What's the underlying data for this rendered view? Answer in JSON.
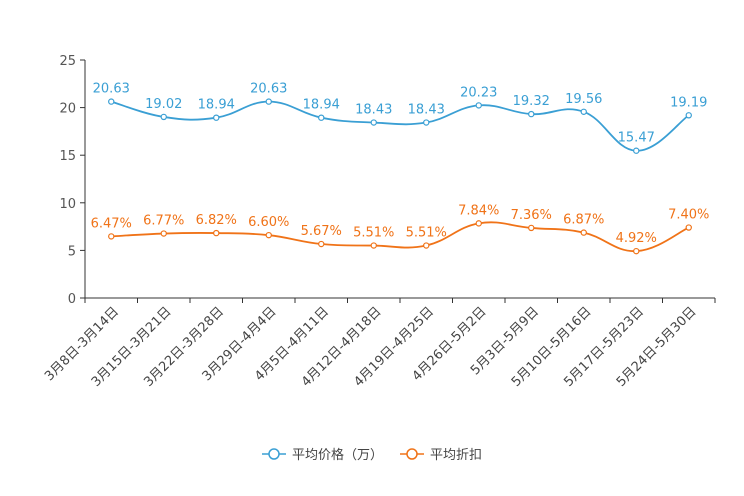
{
  "chart_data": {
    "type": "line",
    "categories": [
      "3月8日-3月14日",
      "3月15日-3月21日",
      "3月22日-3月28日",
      "3月29日-4月4日",
      "4月5日-4月11日",
      "4月12日-4月18日",
      "4月19日-4月25日",
      "4月26日-5月2日",
      "5月3日-5月9日",
      "5月10日-5月16日",
      "5月17日-5月23日",
      "5月24日-5月30日"
    ],
    "ylim": [
      0,
      25
    ],
    "yticks": [
      0,
      5,
      10,
      15,
      20,
      25
    ],
    "series": [
      {
        "name": "平均价格（万）",
        "color": "#3a9fd4",
        "values": [
          20.63,
          19.02,
          18.94,
          20.63,
          18.94,
          18.43,
          18.43,
          20.23,
          19.32,
          19.56,
          15.47,
          19.19
        ],
        "labels": [
          "20.63",
          "19.02",
          "18.94",
          "20.63",
          "18.94",
          "18.43",
          "18.43",
          "20.23",
          "19.32",
          "19.56",
          "15.47",
          "19.19"
        ]
      },
      {
        "name": "平均折扣",
        "color": "#f07318",
        "values": [
          6.47,
          6.77,
          6.82,
          6.6,
          5.67,
          5.51,
          5.51,
          7.84,
          7.36,
          6.87,
          4.92,
          7.4
        ],
        "labels": [
          "6.47%",
          "6.77%",
          "6.82%",
          "6.60%",
          "5.67%",
          "5.51%",
          "5.51%",
          "7.84%",
          "7.36%",
          "6.87%",
          "4.92%",
          "7.40%"
        ]
      }
    ],
    "legend": "bottom-center"
  }
}
